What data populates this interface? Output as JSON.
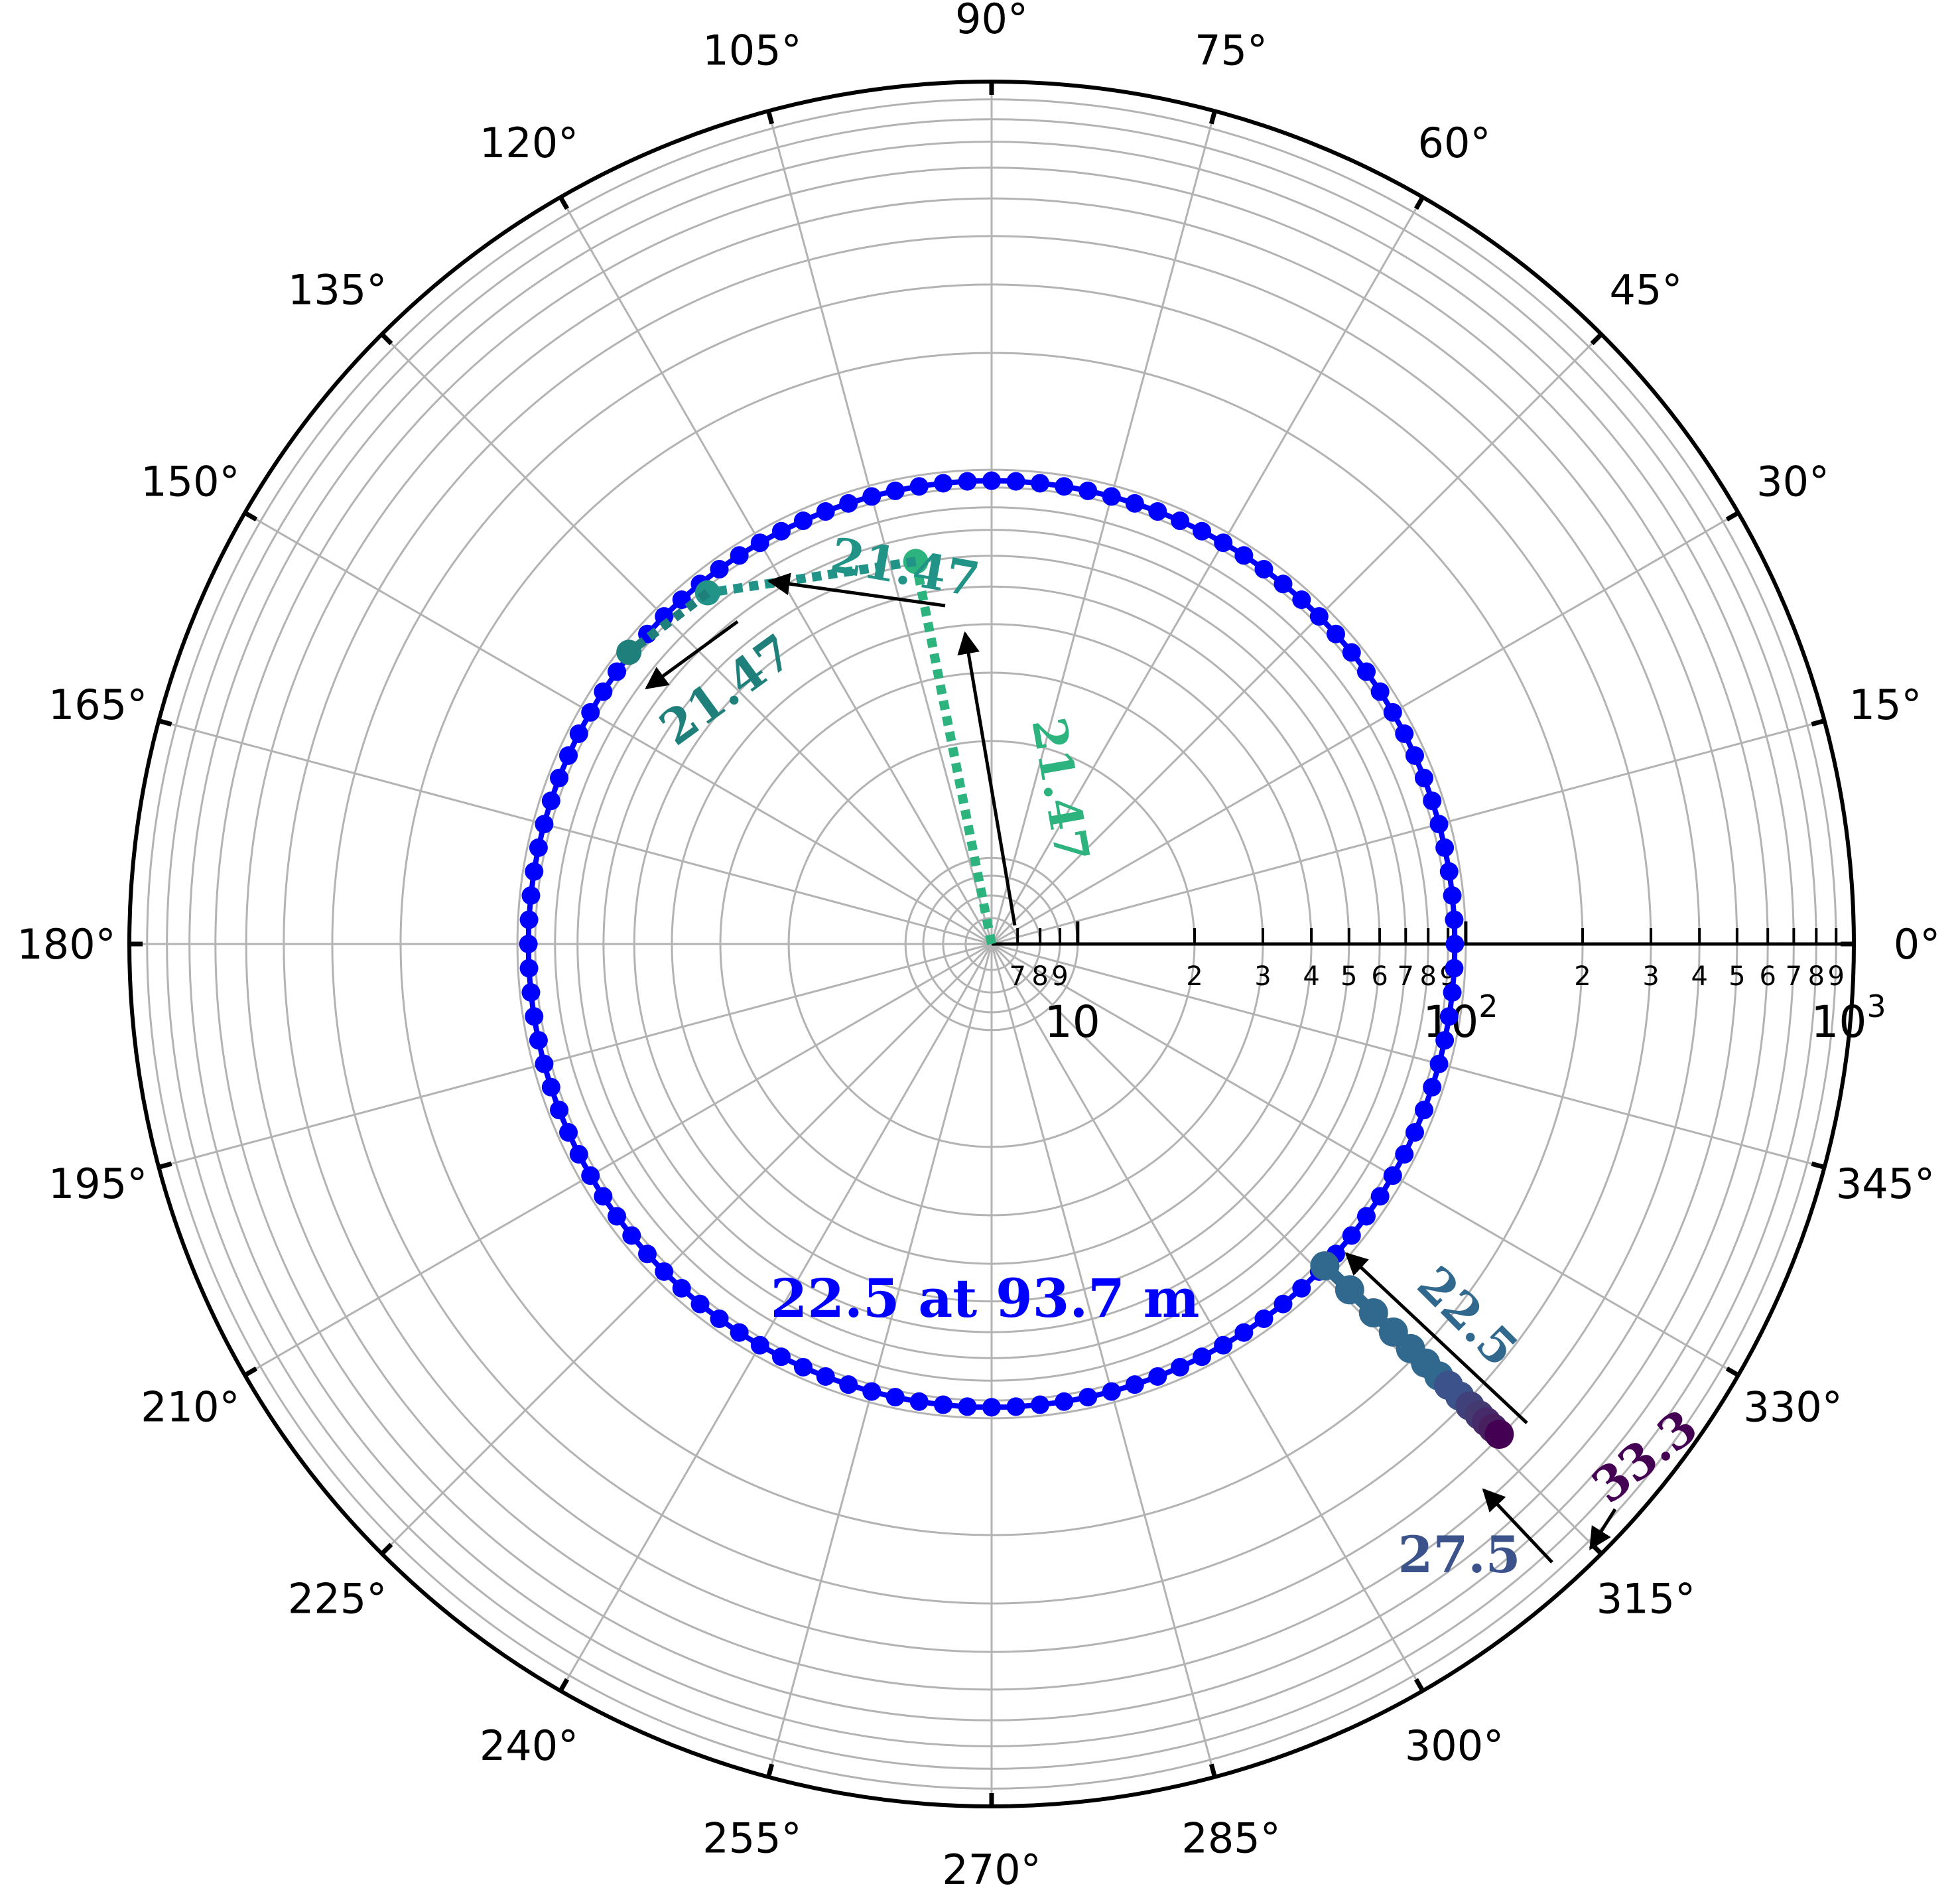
{
  "chart_data": {
    "type": "scatter",
    "projection": "polar",
    "radial_scale": "log",
    "radial_range": [
      6,
      1000
    ],
    "radial_origin": "left-of-center",
    "angular_direction": "counterclockwise",
    "angular_zero": "east",
    "grid": true,
    "angle_ticks": [
      {
        "deg": 0,
        "label": "0°"
      },
      {
        "deg": 15,
        "label": "15°"
      },
      {
        "deg": 30,
        "label": "30°"
      },
      {
        "deg": 45,
        "label": "45°"
      },
      {
        "deg": 60,
        "label": "60°"
      },
      {
        "deg": 75,
        "label": "75°"
      },
      {
        "deg": 90,
        "label": "90°"
      },
      {
        "deg": 105,
        "label": "105°"
      },
      {
        "deg": 120,
        "label": "120°"
      },
      {
        "deg": 135,
        "label": "135°"
      },
      {
        "deg": 150,
        "label": "150°"
      },
      {
        "deg": 165,
        "label": "165°"
      },
      {
        "deg": 180,
        "label": "180°"
      },
      {
        "deg": 195,
        "label": "195°"
      },
      {
        "deg": 210,
        "label": "210°"
      },
      {
        "deg": 225,
        "label": "225°"
      },
      {
        "deg": 240,
        "label": "240°"
      },
      {
        "deg": 255,
        "label": "255°"
      },
      {
        "deg": 270,
        "label": "270°"
      },
      {
        "deg": 285,
        "label": "285°"
      },
      {
        "deg": 300,
        "label": "300°"
      },
      {
        "deg": 315,
        "label": "315°"
      },
      {
        "deg": 330,
        "label": "330°"
      },
      {
        "deg": 345,
        "label": "345°"
      }
    ],
    "radial_major_ticks": [
      {
        "value": 10,
        "label": "10"
      },
      {
        "value": 100,
        "label": "10",
        "sup": "2"
      },
      {
        "value": 1000,
        "label": "10",
        "sup": "3"
      }
    ],
    "radial_minor_ticks": [
      {
        "value": 7,
        "label": "7"
      },
      {
        "value": 8,
        "label": "8"
      },
      {
        "value": 9,
        "label": "9"
      },
      {
        "value": 20,
        "label": "2"
      },
      {
        "value": 30,
        "label": "3"
      },
      {
        "value": 40,
        "label": "4"
      },
      {
        "value": 50,
        "label": "5"
      },
      {
        "value": 60,
        "label": "6"
      },
      {
        "value": 70,
        "label": "7"
      },
      {
        "value": 80,
        "label": "8"
      },
      {
        "value": 90,
        "label": "9"
      },
      {
        "value": 200,
        "label": "2"
      },
      {
        "value": 300,
        "label": "3"
      },
      {
        "value": 400,
        "label": "4"
      },
      {
        "value": 500,
        "label": "5"
      },
      {
        "value": 600,
        "label": "6"
      },
      {
        "value": 700,
        "label": "7"
      },
      {
        "value": 800,
        "label": "8"
      },
      {
        "value": 900,
        "label": "9"
      }
    ],
    "circle_series": {
      "color": "#0000ff",
      "cx": 0,
      "cy": 0,
      "radius": 93.7,
      "points": 120,
      "label": "22.5 at 93.7 m"
    },
    "segments": [
      {
        "from": [
          0,
          0
        ],
        "to": [
          -11.8,
          59.5
        ],
        "color": "#2db37e",
        "label": "21.47"
      },
      {
        "from": [
          -11.8,
          59.5
        ],
        "to": [
          -55,
          68
        ],
        "color": "#229487",
        "label": "21.47"
      },
      {
        "from": [
          -55,
          68
        ],
        "to": [
          -74,
          59.5
        ],
        "color": "#1f7f7a",
        "label": "21.47"
      }
    ],
    "ray_points": {
      "angle_deg": 316,
      "points": [
        {
          "r": 93.7,
          "color": "#31688e"
        },
        {
          "r": 115,
          "color": "#31688e"
        },
        {
          "r": 140,
          "color": "#31688e"
        },
        {
          "r": 165,
          "color": "#31688e"
        },
        {
          "r": 190,
          "color": "#31688e"
        },
        {
          "r": 215,
          "color": "#31688e"
        },
        {
          "r": 240,
          "color": "#31688e"
        },
        {
          "r": 260,
          "color": "#3b528b"
        },
        {
          "r": 285,
          "color": "#3b528b"
        },
        {
          "r": 310,
          "color": "#40417a"
        },
        {
          "r": 335,
          "color": "#433a72"
        },
        {
          "r": 355,
          "color": "#472a6a"
        },
        {
          "r": 375,
          "color": "#482060"
        },
        {
          "r": 395,
          "color": "#440154"
        }
      ]
    },
    "annotations": [
      {
        "text": "21.47",
        "color": "#2db37e"
      },
      {
        "text": "21.47",
        "color": "#229487"
      },
      {
        "text": "21.47",
        "color": "#1f7f7a"
      },
      {
        "text": "22.5",
        "color": "#31688e"
      },
      {
        "text": "27.5",
        "color": "#3b528b"
      },
      {
        "text": "33.3",
        "color": "#440154"
      },
      {
        "text": "22.5 at 93.7 m",
        "color": "#0000ff"
      }
    ]
  }
}
